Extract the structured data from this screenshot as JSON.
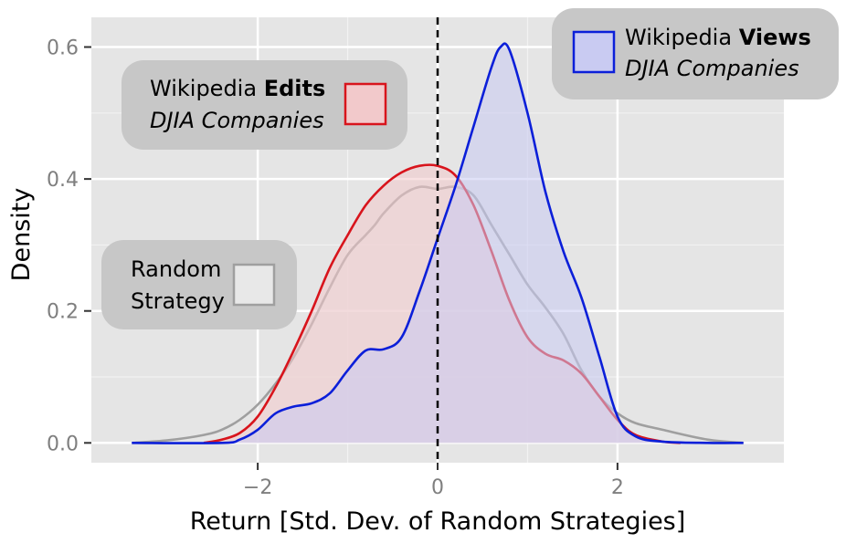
{
  "chart_data": {
    "type": "area",
    "title": "",
    "xlabel": "Return [Std. Dev. of Random Strategies]",
    "ylabel": "Density",
    "xlim": [
      -3.85,
      3.85
    ],
    "ylim": [
      -0.03,
      0.645
    ],
    "x_ticks": [
      -2,
      0,
      2
    ],
    "x_tick_labels": [
      "−2",
      "0",
      "2"
    ],
    "y_ticks": [
      0.0,
      0.2,
      0.4,
      0.6
    ],
    "y_tick_labels": [
      "0.0",
      "0.2",
      "0.4",
      "0.6"
    ],
    "grid": true,
    "reference_line": {
      "x": 0,
      "style": "dashed"
    },
    "series": [
      {
        "key": "random",
        "label_lines": [
          "Random",
          "Strategy"
        ],
        "color": "#9f9f9f",
        "fill": "#e8e8e8",
        "points": [
          [
            -3.4,
            0
          ],
          [
            -3.0,
            0.004
          ],
          [
            -2.6,
            0.012
          ],
          [
            -2.4,
            0.02
          ],
          [
            -2.2,
            0.035
          ],
          [
            -2.0,
            0.058
          ],
          [
            -1.8,
            0.09
          ],
          [
            -1.6,
            0.13
          ],
          [
            -1.4,
            0.18
          ],
          [
            -1.2,
            0.235
          ],
          [
            -1.0,
            0.285
          ],
          [
            -0.8,
            0.315
          ],
          [
            -0.7,
            0.33
          ],
          [
            -0.6,
            0.348
          ],
          [
            -0.4,
            0.375
          ],
          [
            -0.2,
            0.388
          ],
          [
            0.0,
            0.385
          ],
          [
            0.2,
            0.388
          ],
          [
            0.4,
            0.375
          ],
          [
            0.6,
            0.33
          ],
          [
            0.8,
            0.285
          ],
          [
            1.0,
            0.24
          ],
          [
            1.2,
            0.205
          ],
          [
            1.4,
            0.165
          ],
          [
            1.6,
            0.11
          ],
          [
            1.8,
            0.07
          ],
          [
            2.0,
            0.045
          ],
          [
            2.2,
            0.03
          ],
          [
            2.5,
            0.02
          ],
          [
            3.0,
            0.005
          ],
          [
            3.4,
            0
          ]
        ]
      },
      {
        "key": "edits",
        "label_lines": [
          "Wikipedia Edits",
          "DJIA Companies"
        ],
        "color": "#d8141c",
        "fill": "#f2c9cb",
        "points": [
          [
            -2.6,
            0
          ],
          [
            -2.4,
            0.005
          ],
          [
            -2.2,
            0.015
          ],
          [
            -2.0,
            0.04
          ],
          [
            -1.8,
            0.085
          ],
          [
            -1.6,
            0.14
          ],
          [
            -1.4,
            0.2
          ],
          [
            -1.2,
            0.265
          ],
          [
            -1.0,
            0.315
          ],
          [
            -0.8,
            0.36
          ],
          [
            -0.6,
            0.39
          ],
          [
            -0.4,
            0.41
          ],
          [
            -0.2,
            0.42
          ],
          [
            0.0,
            0.42
          ],
          [
            0.2,
            0.405
          ],
          [
            0.4,
            0.36
          ],
          [
            0.6,
            0.29
          ],
          [
            0.8,
            0.215
          ],
          [
            1.0,
            0.16
          ],
          [
            1.2,
            0.135
          ],
          [
            1.4,
            0.125
          ],
          [
            1.6,
            0.105
          ],
          [
            1.8,
            0.07
          ],
          [
            2.0,
            0.035
          ],
          [
            2.2,
            0.012
          ],
          [
            2.5,
            0.002
          ],
          [
            2.7,
            0
          ]
        ]
      },
      {
        "key": "views",
        "label_lines": [
          "Wikipedia Views",
          "DJIA Companies"
        ],
        "color": "#0b1fd9",
        "fill": "#c9cbf2",
        "points": [
          [
            -3.4,
            0
          ],
          [
            -2.4,
            0
          ],
          [
            -2.2,
            0.005
          ],
          [
            -2.0,
            0.02
          ],
          [
            -1.8,
            0.045
          ],
          [
            -1.6,
            0.055
          ],
          [
            -1.4,
            0.06
          ],
          [
            -1.2,
            0.075
          ],
          [
            -1.0,
            0.11
          ],
          [
            -0.8,
            0.14
          ],
          [
            -0.6,
            0.142
          ],
          [
            -0.4,
            0.16
          ],
          [
            -0.2,
            0.23
          ],
          [
            0.0,
            0.31
          ],
          [
            0.2,
            0.39
          ],
          [
            0.4,
            0.48
          ],
          [
            0.6,
            0.57
          ],
          [
            0.7,
            0.6
          ],
          [
            0.8,
            0.595
          ],
          [
            1.0,
            0.5
          ],
          [
            1.2,
            0.38
          ],
          [
            1.4,
            0.29
          ],
          [
            1.6,
            0.22
          ],
          [
            1.8,
            0.13
          ],
          [
            2.0,
            0.04
          ],
          [
            2.2,
            0.01
          ],
          [
            2.5,
            0.002
          ],
          [
            3.0,
            0
          ],
          [
            3.4,
            0
          ]
        ]
      }
    ]
  }
}
